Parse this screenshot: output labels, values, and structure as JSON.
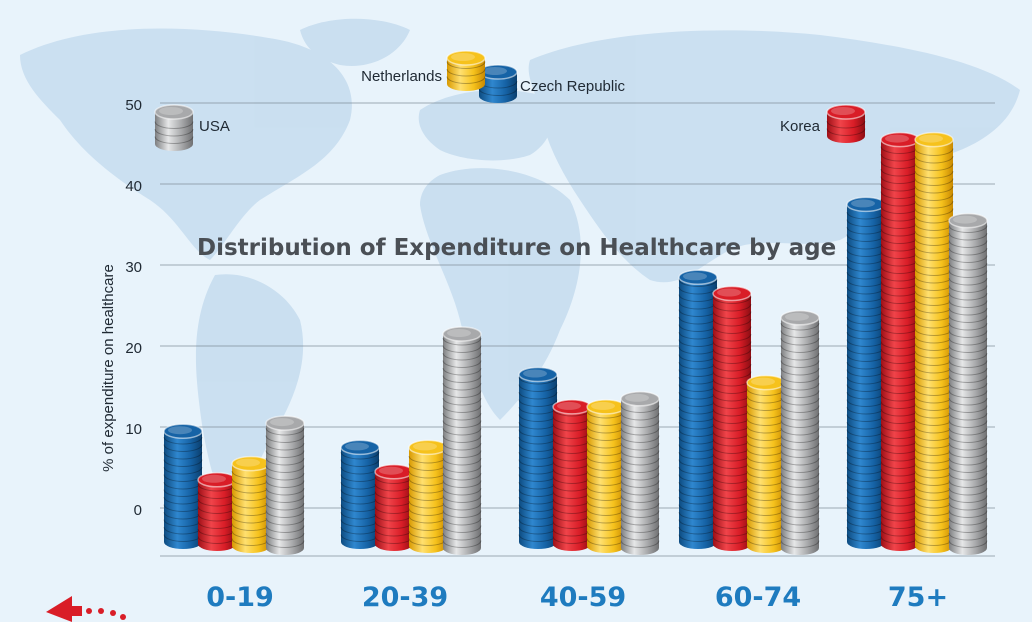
{
  "chart_data": {
    "type": "bar",
    "title": "Distribution of Expenditure on Healthcare by age",
    "ylabel": "% of expenditure on healthcare",
    "xlabel": "",
    "ylim": [
      -5,
      50
    ],
    "yticks": [
      0,
      10,
      20,
      30,
      40,
      50
    ],
    "grid": true,
    "legend_placement": "top",
    "categories": [
      "0-19",
      "20-39",
      "40-59",
      "60-74",
      "75+"
    ],
    "series": [
      {
        "name": "Czech Republic",
        "color": "#1663a6",
        "values": [
          8,
          6,
          15,
          27,
          36
        ]
      },
      {
        "name": "Korea",
        "color": "#d91d27",
        "values": [
          2,
          3,
          11,
          25,
          44
        ]
      },
      {
        "name": "Netherlands",
        "color": "#f6c21c",
        "values": [
          4,
          6,
          11,
          14,
          44
        ]
      },
      {
        "name": "USA",
        "color": "#a8a9ab",
        "values": [
          9,
          20,
          12,
          22,
          34
        ]
      }
    ]
  },
  "decor": {
    "background_map": "world-map",
    "back_arrow_icon": "red-dotted-arrow-left"
  }
}
